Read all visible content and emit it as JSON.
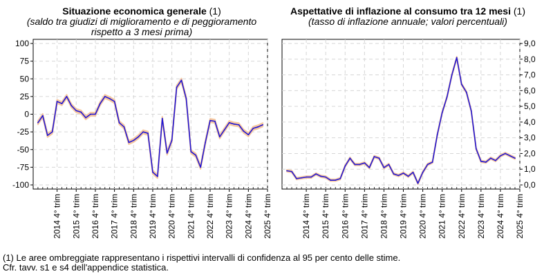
{
  "left": {
    "title": "Situazione economica generale",
    "title_suffix": " (1)",
    "subtitle_line1": "(saldo tra giudizi di miglioramento e di peggioramento",
    "subtitle_line2": "rispetto a 3 mesi prima)"
  },
  "right": {
    "title": "Aspettative di inflazione al consumo tra 12 mesi",
    "title_suffix": " (1)",
    "subtitle_line1": "(tasso di inflazione annuale; valori percentuali)"
  },
  "footnote1": "(1) Le aree ombreggiate rappresentano i rispettivi intervalli di confidenza al 95 per cento delle stime.",
  "footnote2": "Cfr. tavv. s1 e s4 dell'appendice statistica.",
  "colors": {
    "line": "#1f16d6",
    "band": "#f6c8a0",
    "grid": "#d6d6d6"
  },
  "chart_data": [
    {
      "type": "line",
      "title": "Situazione economica generale (1)",
      "subtitle": "(saldo tra giudizi di miglioramento e di peggioramento rispetto a 3 mesi prima)",
      "ylim": [
        -100,
        100
      ],
      "yticks": [
        "100",
        "75",
        "50",
        "25",
        "0",
        "-25",
        "-50",
        "-75",
        "-100"
      ],
      "yaxis_side": "left",
      "categories": [
        "2014 4° trim",
        "2015 4° trim",
        "2016 4° trim",
        "2017 4° trim",
        "2018 4° trim",
        "2019 4° trim",
        "2020 4° trim",
        "2021 4° trim",
        "2022 4° trim",
        "2023 4° trim",
        "2024 4° trim",
        "2025 4° trim"
      ],
      "x_start": 2013.5,
      "x_end": 2025.75,
      "x": [
        2013.75,
        2014.0,
        2014.25,
        2014.5,
        2014.75,
        2015.0,
        2015.25,
        2015.5,
        2015.75,
        2016.0,
        2016.25,
        2016.5,
        2016.75,
        2017.0,
        2017.25,
        2017.5,
        2017.75,
        2018.0,
        2018.25,
        2018.5,
        2018.75,
        2019.0,
        2019.25,
        2019.5,
        2019.75,
        2020.0,
        2020.25,
        2020.5,
        2020.75,
        2021.0,
        2021.25,
        2021.5,
        2021.75,
        2022.0,
        2022.25,
        2022.5,
        2022.75,
        2023.0,
        2023.25,
        2023.5,
        2023.75,
        2024.0,
        2024.25,
        2024.5,
        2024.75,
        2025.0,
        2025.25,
        2025.5
      ],
      "series": [
        {
          "name": "Situazione economica generale",
          "values": [
            -12,
            -2,
            -30,
            -25,
            18,
            15,
            25,
            12,
            5,
            3,
            -5,
            0,
            0,
            15,
            25,
            22,
            18,
            -12,
            -18,
            -40,
            -37,
            -32,
            -25,
            -27,
            -82,
            -88,
            -6,
            -55,
            -37,
            38,
            48,
            22,
            -53,
            -58,
            -75,
            -40,
            -9,
            -10,
            -32,
            -22,
            -12,
            -14,
            -15,
            -24,
            -29,
            -20,
            -18,
            -15
          ],
          "band_halfwidth": 2.5
        }
      ]
    },
    {
      "type": "line",
      "title": "Aspettative di inflazione al consumo tra 12 mesi (1)",
      "subtitle": "(tasso di inflazione annuale; valori percentuali)",
      "ylim": [
        0,
        9
      ],
      "yticks": [
        "9,0",
        "8,0",
        "7,0",
        "6,0",
        "5,0",
        "4,0",
        "3,0",
        "2,0",
        "1,0",
        "0,0"
      ],
      "yaxis_side": "right",
      "categories": [
        "2014 4° trim",
        "2015 4° trim",
        "2016 4° trim",
        "2017 4° trim",
        "2018 4° trim",
        "2019 4° trim",
        "2020 4° trim",
        "2021 4° trim",
        "2022 4° trim",
        "2023 4° trim",
        "2024 4° trim",
        "2025 4° trim"
      ],
      "x_start": 2013.5,
      "x_end": 2025.75,
      "x": [
        2013.75,
        2014.0,
        2014.25,
        2014.5,
        2014.75,
        2015.0,
        2015.25,
        2015.5,
        2015.75,
        2016.0,
        2016.25,
        2016.5,
        2016.75,
        2017.0,
        2017.25,
        2017.5,
        2017.75,
        2018.0,
        2018.25,
        2018.5,
        2018.75,
        2019.0,
        2019.25,
        2019.5,
        2019.75,
        2020.0,
        2020.25,
        2020.5,
        2020.75,
        2021.0,
        2021.25,
        2021.5,
        2021.75,
        2022.0,
        2022.25,
        2022.5,
        2022.75,
        2023.0,
        2023.25,
        2023.5,
        2023.75,
        2024.0,
        2024.25,
        2024.5,
        2024.75,
        2025.0,
        2025.25,
        2025.5
      ],
      "series": [
        {
          "name": "Aspettative di inflazione",
          "values": [
            0.9,
            0.85,
            0.4,
            0.45,
            0.5,
            0.5,
            0.7,
            0.55,
            0.5,
            0.3,
            0.3,
            0.4,
            1.2,
            1.7,
            1.3,
            1.3,
            1.4,
            1.1,
            1.8,
            1.7,
            1.1,
            1.3,
            0.7,
            0.6,
            0.75,
            0.55,
            0.8,
            0.1,
            0.8,
            1.3,
            1.45,
            3.2,
            4.6,
            5.6,
            7.0,
            8.1,
            6.4,
            5.9,
            4.7,
            2.3,
            1.5,
            1.45,
            1.7,
            1.55,
            1.85,
            2.0,
            1.85,
            1.7
          ],
          "band_halfwidth": 0.06
        }
      ]
    }
  ]
}
